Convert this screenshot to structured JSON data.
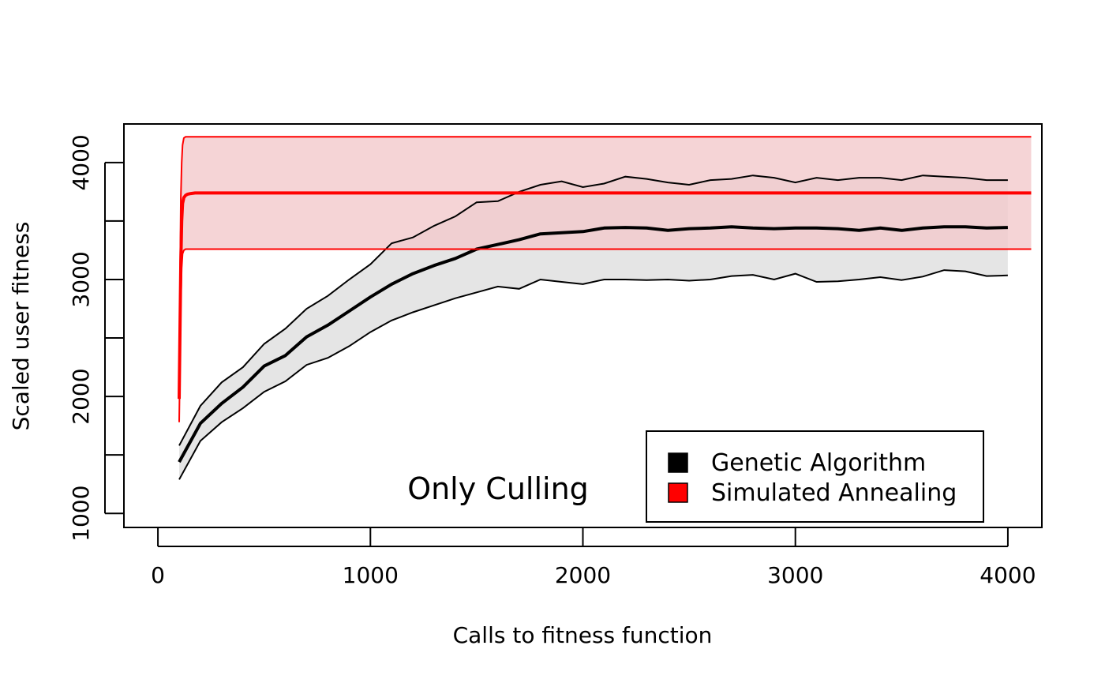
{
  "chart_data": {
    "type": "line",
    "title": "",
    "xlabel": "Calls to fitness function",
    "ylabel": "Scaled user fitness",
    "xlim": [
      -160,
      4160
    ],
    "ylim": [
      880,
      4330
    ],
    "x_ticks": [
      0,
      1000,
      2000,
      3000,
      4000
    ],
    "x_tick_labels": [
      "0",
      "1000",
      "2000",
      "3000",
      "4000"
    ],
    "y_ticks": [
      1000,
      1500,
      2000,
      2500,
      3000,
      3500,
      4000
    ],
    "y_tick_labels": [
      "1000",
      "",
      "2000",
      "",
      "3000",
      "",
      "4000"
    ],
    "grid": false,
    "legend_position": "bottom-right",
    "annotation": "Only Culling",
    "colors": {
      "ga_line": "#000000",
      "ga_band": "#e5e5e5",
      "sa_line": "#ff0000",
      "sa_band": "#f2c9cc"
    },
    "series": [
      {
        "name": "Genetic Algorithm",
        "x": [
          100,
          200,
          300,
          400,
          500,
          600,
          700,
          800,
          900,
          1000,
          1100,
          1200,
          1300,
          1400,
          1500,
          1600,
          1700,
          1800,
          1900,
          2000,
          2100,
          2200,
          2300,
          2400,
          2500,
          2600,
          2700,
          2800,
          2900,
          3000,
          3100,
          3200,
          3300,
          3400,
          3500,
          3600,
          3700,
          3800,
          3900,
          4000
        ],
        "mean": [
          1440,
          1770,
          1940,
          2080,
          2260,
          2350,
          2510,
          2610,
          2730,
          2850,
          2960,
          3050,
          3120,
          3180,
          3260,
          3300,
          3340,
          3390,
          3400,
          3410,
          3440,
          3445,
          3440,
          3420,
          3435,
          3440,
          3450,
          3440,
          3435,
          3440,
          3440,
          3435,
          3420,
          3440,
          3420,
          3440,
          3450,
          3450,
          3440,
          3445
        ],
        "upper": [
          1580,
          1920,
          2120,
          2250,
          2450,
          2580,
          2750,
          2860,
          3000,
          3130,
          3310,
          3360,
          3460,
          3540,
          3660,
          3670,
          3750,
          3810,
          3840,
          3790,
          3820,
          3880,
          3860,
          3830,
          3810,
          3850,
          3860,
          3890,
          3870,
          3830,
          3870,
          3850,
          3870,
          3870,
          3850,
          3890,
          3880,
          3870,
          3850,
          3850
        ],
        "lower": [
          1290,
          1620,
          1780,
          1900,
          2040,
          2130,
          2270,
          2330,
          2430,
          2550,
          2650,
          2720,
          2780,
          2840,
          2890,
          2940,
          2920,
          3000,
          2980,
          2960,
          3000,
          3000,
          2995,
          3000,
          2990,
          3000,
          3030,
          3040,
          3000,
          3050,
          2980,
          2985,
          3000,
          3020,
          2995,
          3025,
          3080,
          3070,
          3030,
          3035
        ]
      },
      {
        "name": "Simulated Annealing",
        "x": [
          100,
          104,
          108,
          112,
          116,
          122,
          130,
          140,
          155,
          175,
          200,
          300,
          500,
          1000,
          1500,
          2000,
          2500,
          3000,
          3500,
          4000,
          4110
        ],
        "mean": [
          1980,
          2600,
          3150,
          3500,
          3650,
          3700,
          3720,
          3730,
          3735,
          3740,
          3740,
          3740,
          3740,
          3740,
          3740,
          3740,
          3740,
          3740,
          3740,
          3740,
          3740
        ],
        "upper": [
          2000,
          3000,
          3700,
          4000,
          4150,
          4210,
          4220,
          4220,
          4220,
          4220,
          4220,
          4220,
          4220,
          4220,
          4220,
          4220,
          4220,
          4220,
          4220,
          4220,
          4220
        ],
        "lower": [
          1780,
          2300,
          2800,
          3100,
          3220,
          3250,
          3260,
          3260,
          3260,
          3260,
          3260,
          3260,
          3260,
          3260,
          3260,
          3260,
          3260,
          3260,
          3260,
          3260,
          3260
        ]
      }
    ]
  }
}
